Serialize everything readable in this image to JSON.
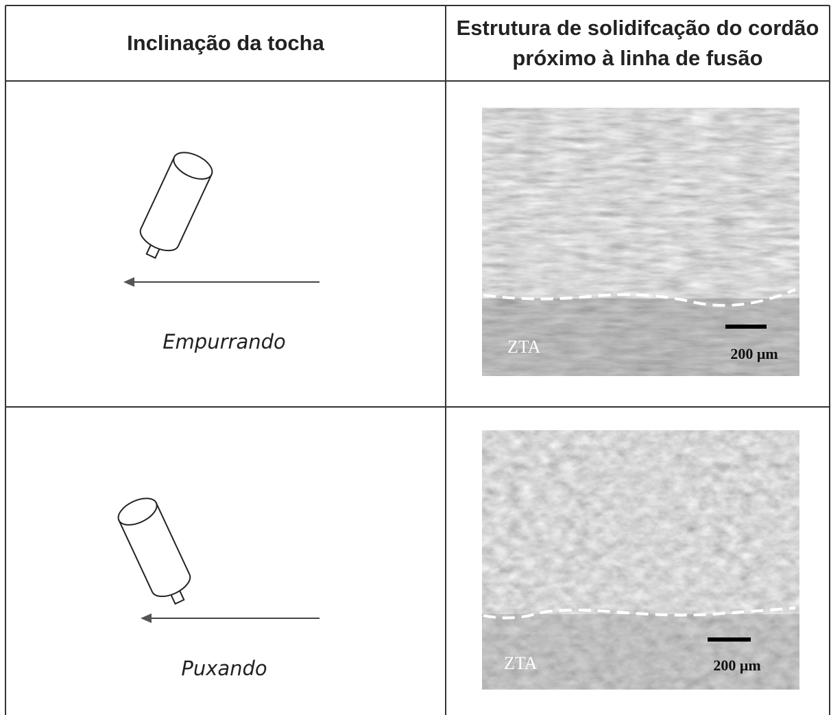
{
  "table": {
    "headers": [
      "Inclinação da tocha",
      "Estrutura de solidifcação do cordão próximo à linha de fusão"
    ],
    "rows": [
      {
        "label": "Empurrando",
        "image": {
          "region": "ZTA",
          "scale": "200 μm"
        }
      },
      {
        "label": "Puxando",
        "image": {
          "region": "ZTA",
          "scale": "200 μm"
        }
      }
    ]
  }
}
